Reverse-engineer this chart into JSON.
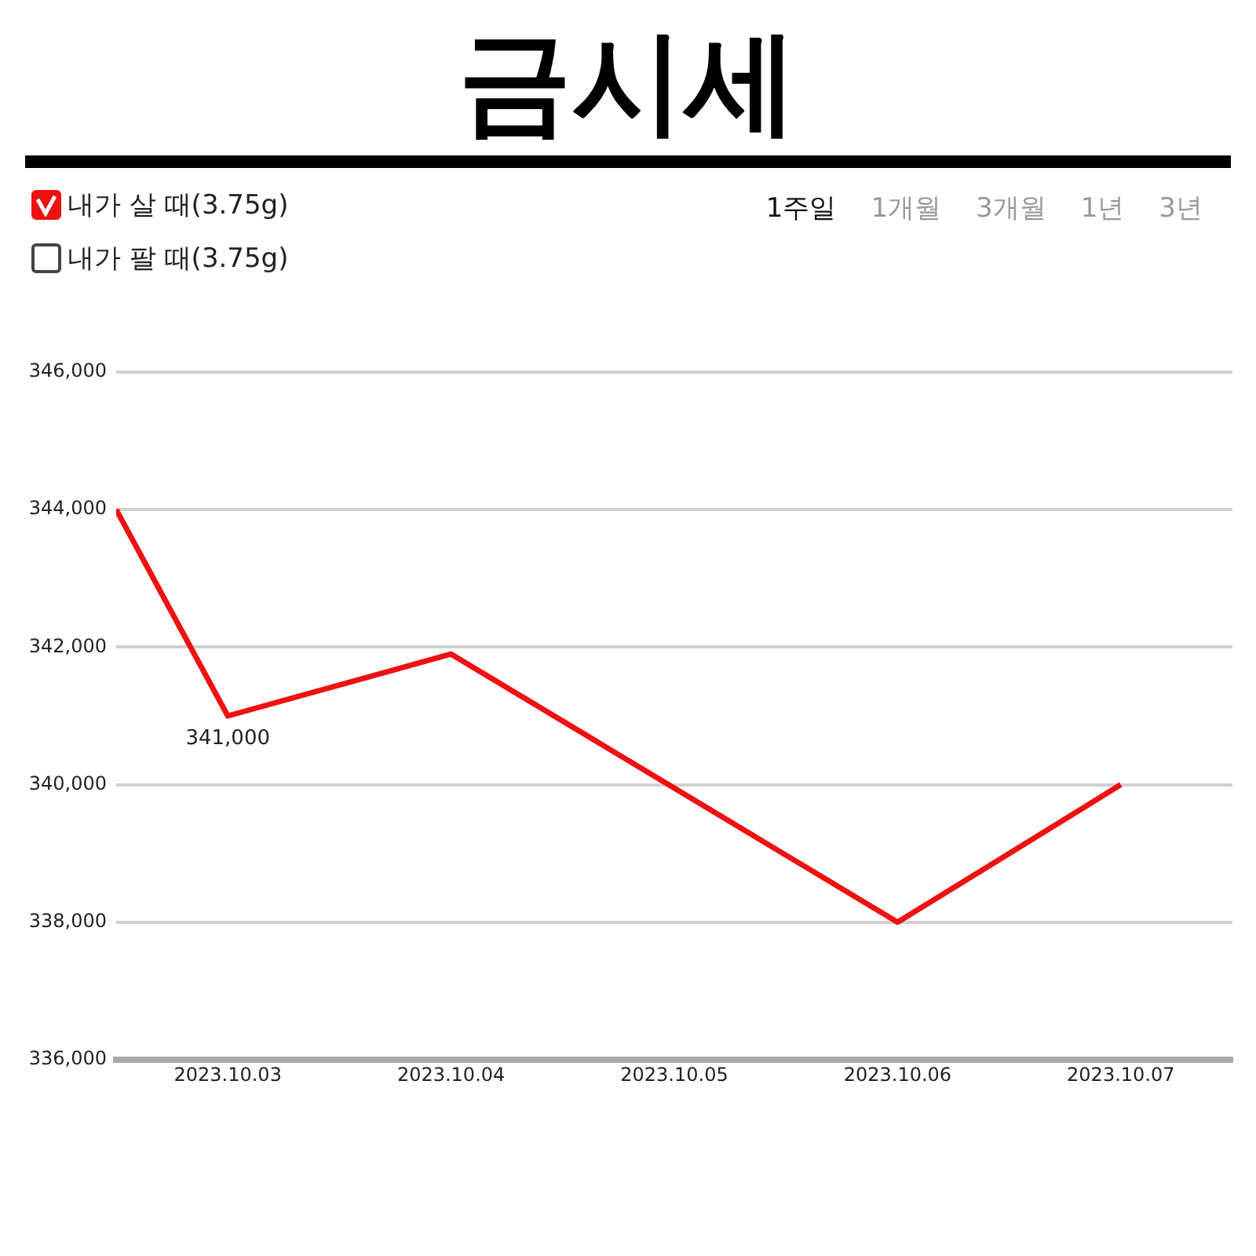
{
  "chart_data": {
    "type": "line",
    "title": "금시세",
    "annotations": [
      {
        "text": "341,000",
        "x": "2023-10-03",
        "y": 341000
      },
      "내가 팔 때(3.75g)",
      "1주일",
      "1개월",
      "3개월",
      "1년",
      "3년"
    ],
    "series": [
      {
        "name": "내가 살 때(3.75g)",
        "color": "#ee1111",
        "x": [
          "2023-10-02T12:00",
          "2023-10-03",
          "2023-10-04",
          "2023-10-06",
          "2023-10-07"
        ],
        "values": [
          344000,
          341000,
          341900,
          338000,
          340000
        ]
      }
    ],
    "xlim": [
      "2023-10-02T12:00",
      "2023-10-07T12:00"
    ],
    "xticks": [
      {
        "value": "2023-10-03",
        "label": "2023.10.03"
      },
      {
        "value": "2023-10-04",
        "label": "2023.10.04"
      },
      {
        "value": "2023-10-05",
        "label": "2023.10.05"
      },
      {
        "value": "2023-10-06",
        "label": "2023.10.06"
      },
      {
        "value": "2023-10-07",
        "label": "2023.10.07"
      }
    ],
    "ylim": [
      336000,
      346000
    ],
    "yticks": [
      {
        "value": 336000,
        "label": "336,000"
      },
      {
        "value": 338000,
        "label": "338,000"
      },
      {
        "value": 340000,
        "label": "340,000"
      },
      {
        "value": 342000,
        "label": "342,000"
      },
      {
        "value": 344000,
        "label": "344,000"
      },
      {
        "value": 346000,
        "label": "346,000"
      }
    ],
    "grid": "y",
    "legend": "top left",
    "marker": "none",
    "line_style": "solid"
  }
}
